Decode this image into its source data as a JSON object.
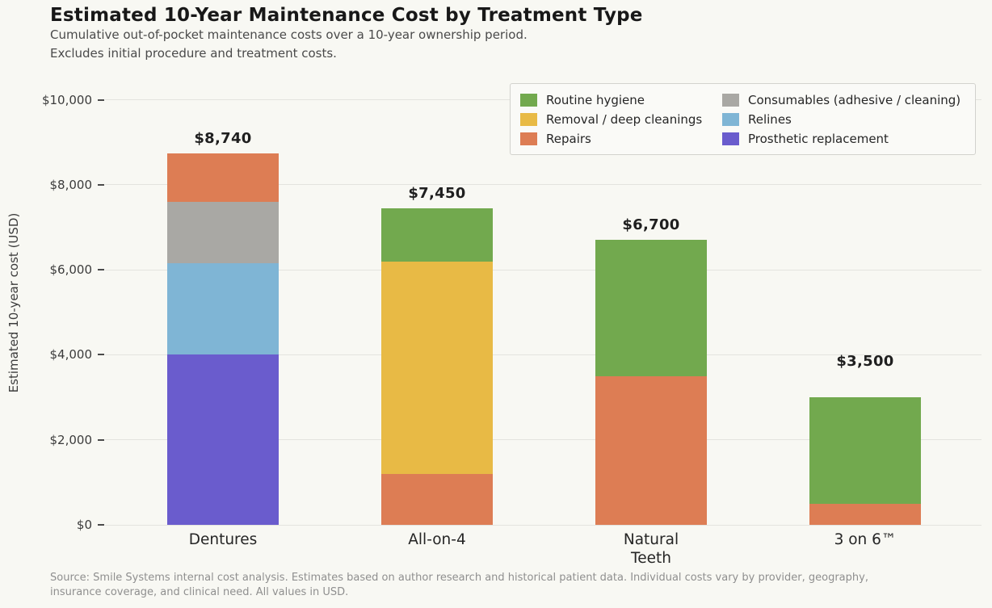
{
  "page": {
    "background": "#f8f8f3"
  },
  "header": {
    "title": "Estimated 10-Year Maintenance Cost by Treatment Type",
    "subtitle_lines": [
      "Cumulative out-of-pocket maintenance costs over a 10-year ownership period.",
      "Excludes initial procedure and treatment costs."
    ]
  },
  "chart_data": {
    "type": "bar",
    "stacked": true,
    "title": "Estimated 10-Year Maintenance Cost by Treatment Type",
    "ylabel": "Estimated 10-year cost (USD)",
    "xlabel": "",
    "ylim": [
      0,
      10000
    ],
    "grid": true,
    "yticks": [
      {
        "value": 0,
        "label": "$0"
      },
      {
        "value": 2000,
        "label": "$2,000"
      },
      {
        "value": 4000,
        "label": "$4,000"
      },
      {
        "value": 6000,
        "label": "$6,000"
      },
      {
        "value": 8000,
        "label": "$8,000"
      },
      {
        "value": 10000,
        "label": "$10,000"
      }
    ],
    "categories": [
      "Dentures",
      "All-on-4",
      "Natural\nTeeth",
      "3 on 6™"
    ],
    "series": [
      {
        "name": "Routine hygiene",
        "color": "#72a94e",
        "values": [
          0,
          1250,
          3200,
          2500
        ]
      },
      {
        "name": "Removal / deep cleanings",
        "color": "#e8ba45",
        "values": [
          0,
          5000,
          0,
          0
        ]
      },
      {
        "name": "Repairs",
        "color": "#dd7d54",
        "values": [
          1140,
          1200,
          3500,
          500
        ]
      },
      {
        "name": "Consumables (adhesive / cleaning)",
        "color": "#a9a8a4",
        "values": [
          1450,
          0,
          0,
          0
        ]
      },
      {
        "name": "Relines",
        "color": "#7fb5d5",
        "values": [
          2150,
          0,
          0,
          0
        ]
      },
      {
        "name": "Prosthetic replacement",
        "color": "#6a5ccd",
        "values": [
          4000,
          0,
          0,
          0
        ]
      }
    ],
    "stack_bottom_to_top": [
      "Prosthetic replacement",
      "Relines",
      "Consumables (adhesive / cleaning)",
      "Repairs",
      "Removal / deep cleanings",
      "Routine hygiene"
    ],
    "total_labels": [
      {
        "text": "$8,740",
        "value": 8740
      },
      {
        "text": "$7,450",
        "value": 7450
      },
      {
        "text": "$6,700",
        "value": 6700
      },
      {
        "text": "$3,500",
        "value": 3500
      }
    ],
    "legend": {
      "position": "upper right",
      "columns": 2
    },
    "gridline_color": "#e3e3de",
    "axis_text_color": "#3c3c3c"
  },
  "footer": {
    "lines": [
      "Source: Smile Systems internal cost analysis. Estimates based on author research and historical patient data. Individual costs vary by provider, geography,",
      "insurance coverage, and clinical need. All values in USD."
    ]
  }
}
